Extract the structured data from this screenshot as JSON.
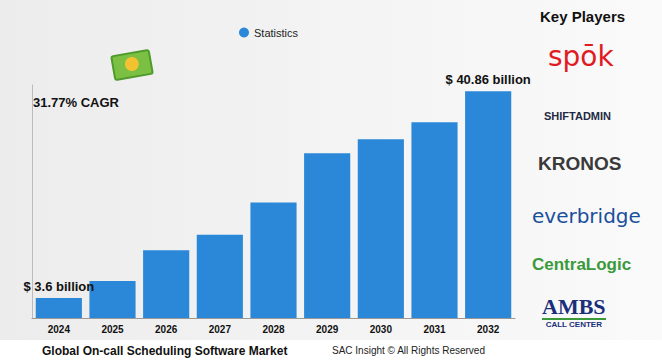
{
  "chart_data": {
    "type": "bar",
    "title": "Global On-call Scheduling Software Market",
    "categories": [
      "2024",
      "2025",
      "2026",
      "2027",
      "2028",
      "2029",
      "2030",
      "2031",
      "2032"
    ],
    "series": [
      {
        "name": "Statistics",
        "color": "#2b88d8",
        "values": [
          3.6,
          6.66,
          12.2,
          15.0,
          20.8,
          29.7,
          32.2,
          35.3,
          40.86
        ],
        "value_labels": [
          "$ 3.6 billion",
          null,
          null,
          null,
          null,
          null,
          null,
          null,
          "$ 40.86 billion"
        ]
      }
    ],
    "ylim": [
      0,
      42
    ],
    "data_labels": true,
    "tick_labels": "x",
    "grid": false,
    "legend": "top",
    "annotations": [
      "31.77% CAGR",
      "SAC Insight © All Rights Reserved"
    ],
    "key_players": {
      "title": "Key Players",
      "names": [
        "spōk",
        "SHIFTADMIN",
        "KRONOS",
        "everbridge",
        "CentraLogic",
        "AMBS CALL CENTER"
      ]
    }
  }
}
